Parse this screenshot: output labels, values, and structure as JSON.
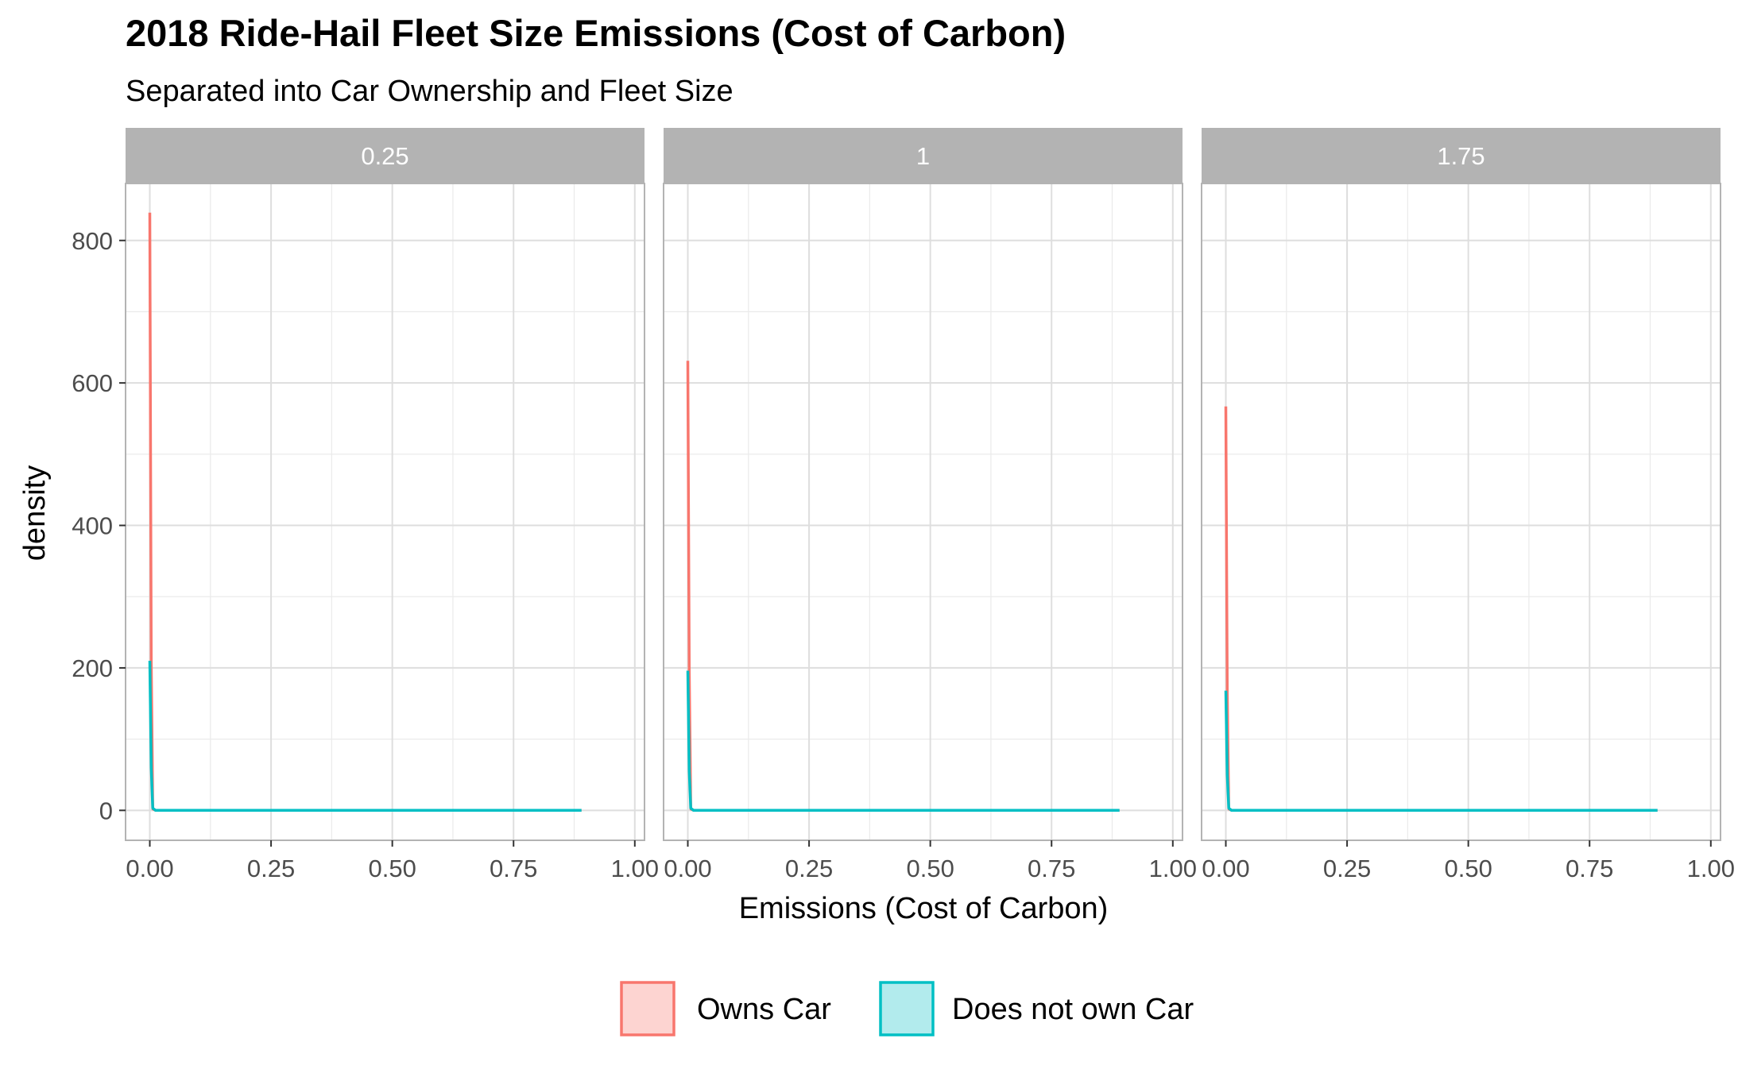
{
  "chart_data": {
    "type": "line",
    "title": "2018 Ride-Hail Fleet Size Emissions (Cost of Carbon)",
    "subtitle": "Separated into Car Ownership and Fleet Size",
    "xlabel": "Emissions (Cost of Carbon)",
    "ylabel": "density",
    "xlim": [
      -0.05,
      1.02
    ],
    "ylim": [
      -42,
      880
    ],
    "x_ticks": [
      "0.00",
      "0.25",
      "0.50",
      "0.75",
      "1.00"
    ],
    "y_ticks": [
      "0",
      "200",
      "400",
      "600",
      "800"
    ],
    "grid": true,
    "legend_position": "bottom",
    "facets": [
      {
        "label": "0.25",
        "series": [
          {
            "name": "Owns Car",
            "color": "#F8766D",
            "x": [
              0.0,
              0.003,
              0.006,
              0.012,
              0.89
            ],
            "y": [
              839,
              210,
              2,
              0,
              0
            ]
          },
          {
            "name": "Does not own Car",
            "color": "#00BFC4",
            "x": [
              0.0,
              0.003,
              0.006,
              0.012,
              0.89
            ],
            "y": [
              210,
              60,
              3,
              0,
              0
            ]
          }
        ]
      },
      {
        "label": "1",
        "series": [
          {
            "name": "Owns Car",
            "color": "#F8766D",
            "x": [
              0.0,
              0.003,
              0.006,
              0.012,
              0.89
            ],
            "y": [
              631,
              196,
              2,
              0,
              0
            ]
          },
          {
            "name": "Does not own Car",
            "color": "#00BFC4",
            "x": [
              0.0,
              0.003,
              0.006,
              0.012,
              0.89
            ],
            "y": [
              196,
              55,
              3,
              0,
              0
            ]
          }
        ]
      },
      {
        "label": "1.75",
        "series": [
          {
            "name": "Owns Car",
            "color": "#F8766D",
            "x": [
              0.0,
              0.003,
              0.006,
              0.012,
              0.89
            ],
            "y": [
              567,
              168,
              2,
              0,
              0
            ]
          },
          {
            "name": "Does not own Car",
            "color": "#00BFC4",
            "x": [
              0.0,
              0.003,
              0.006,
              0.012,
              0.89
            ],
            "y": [
              168,
              50,
              3,
              0,
              0
            ]
          }
        ]
      }
    ],
    "legend": [
      {
        "label": "Owns Car",
        "color": "#F8766D",
        "fill": "#FDD4D1"
      },
      {
        "label": "Does not own Car",
        "color": "#00BFC4",
        "fill": "#B2EBED"
      }
    ]
  }
}
